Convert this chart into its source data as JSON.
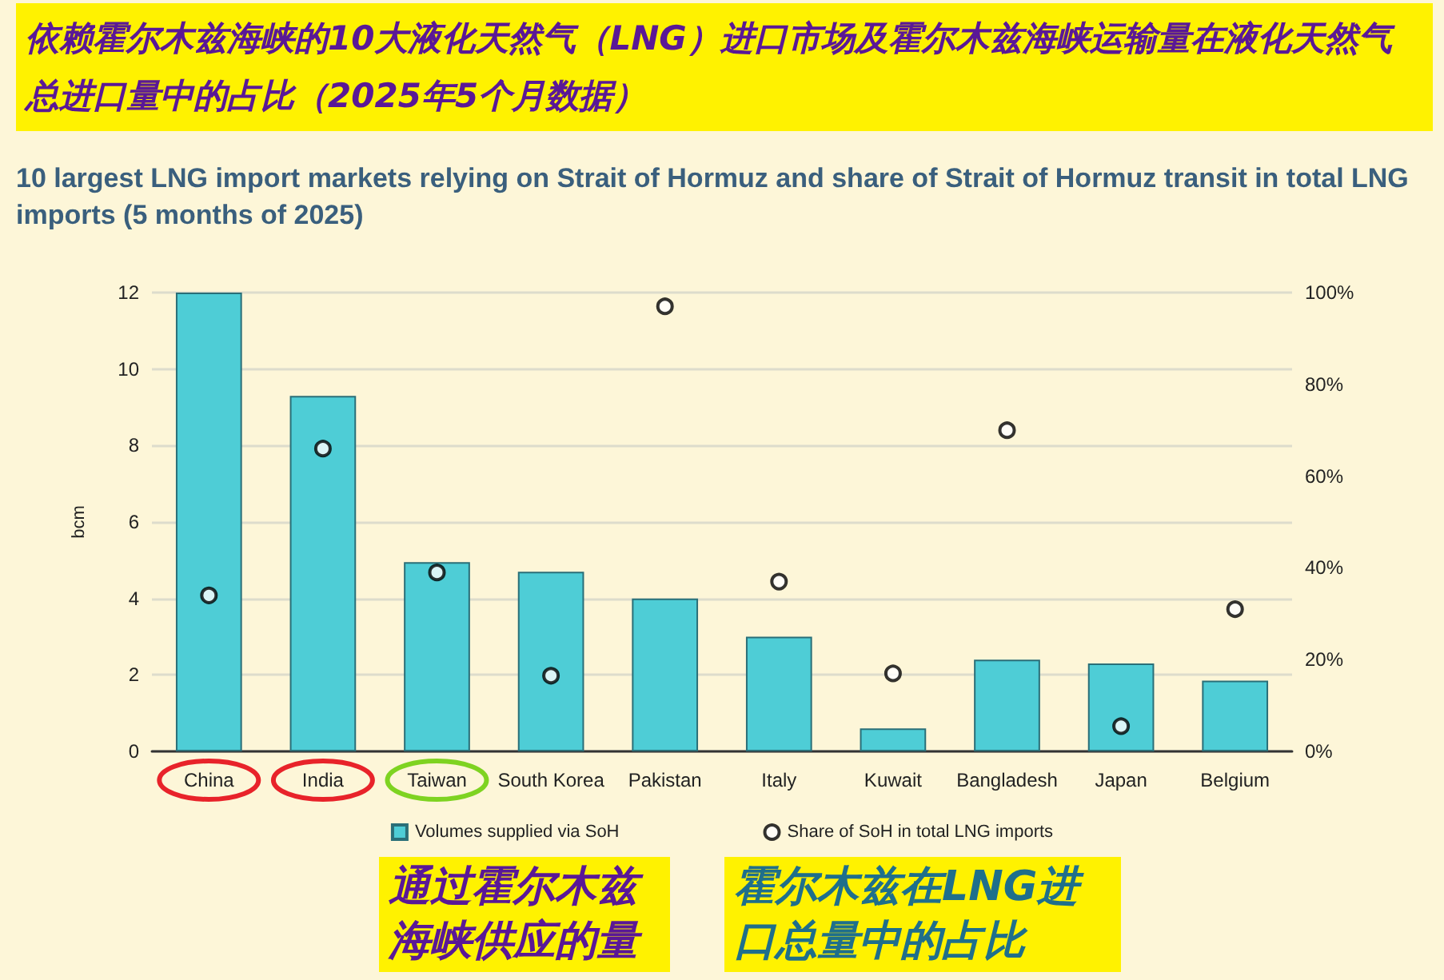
{
  "chart_data": {
    "type": "bar",
    "title": "依赖霍尔木兹海峡的10大液化天然气（LNG）进口市场及霍尔木兹海峡运输量在液化天然气总进口量中的占比（2025年5个月数据）",
    "subtitle": "10 largest LNG import markets relying on Strait of Hormuz and share of Strait of Hormuz transit in total LNG imports (5 months of 2025)",
    "ylabel": "bcm",
    "categories": [
      "China",
      "India",
      "Taiwan",
      "South Korea",
      "Pakistan",
      "Italy",
      "Kuwait",
      "Bangladesh",
      "Japan",
      "Belgium"
    ],
    "series": [
      {
        "name": "Volumes supplied via SoH",
        "color": "#4ecdd6",
        "values": [
          12,
          9.3,
          4.95,
          4.7,
          4.0,
          3.0,
          0.6,
          2.4,
          2.3,
          1.85
        ]
      },
      {
        "name": "Share of SoH in total LNG imports",
        "type": "scatter",
        "axis": "y2",
        "color": "#000000",
        "values": [
          34,
          66,
          39,
          16.5,
          97,
          37,
          17,
          70,
          5.5,
          31
        ]
      }
    ],
    "ylim": [
      0,
      12
    ],
    "yticks": [
      0,
      2,
      4,
      6,
      8,
      10,
      12
    ],
    "y2lim": [
      0,
      100
    ],
    "y2ticks": [
      {
        "value": 0,
        "label": "0%"
      },
      {
        "value": 20,
        "label": "20%"
      },
      {
        "value": 40,
        "label": "40%"
      },
      {
        "value": 60,
        "label": "60%"
      },
      {
        "value": 80,
        "label": "80%"
      },
      {
        "value": 100,
        "label": "100%"
      }
    ],
    "grid": "y",
    "legend": "bottom",
    "marker": "circle",
    "annotations": [
      "通过霍尔木兹海峡供应的量",
      "霍尔木兹在LNG进口总量中的占比"
    ]
  }
}
